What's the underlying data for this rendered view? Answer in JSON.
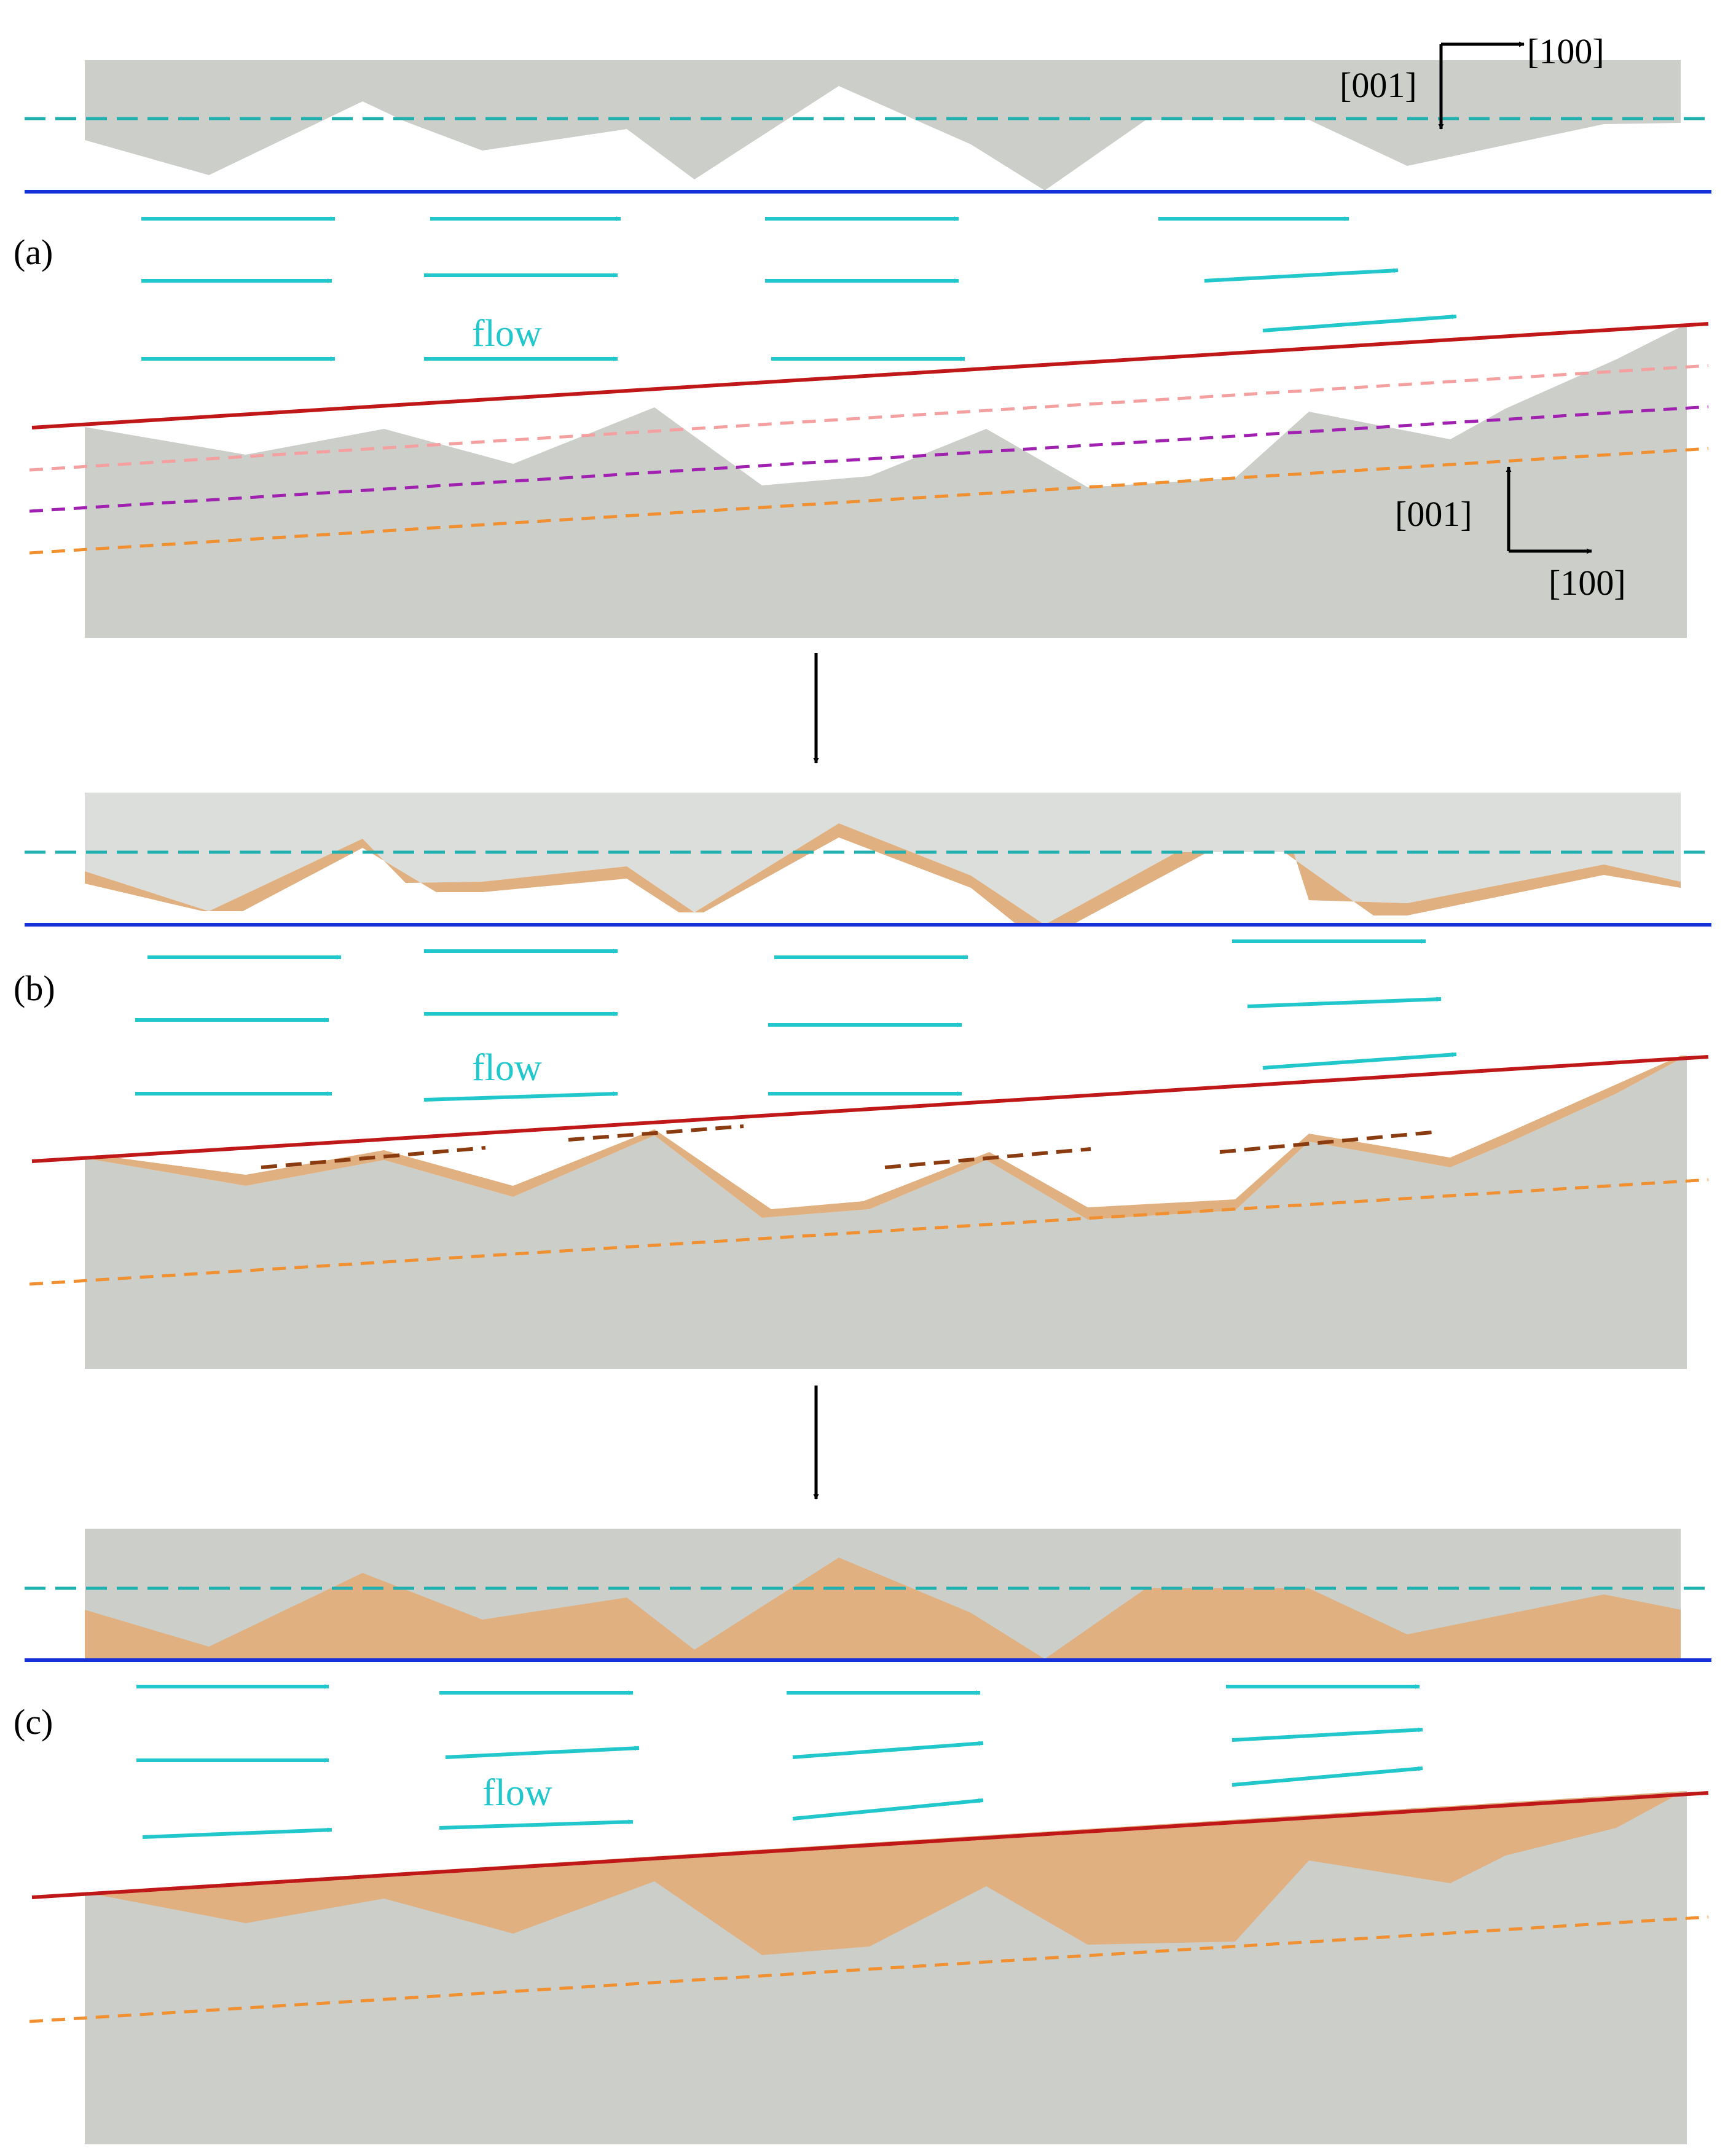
{
  "panels": [
    {
      "label": "(a)",
      "flow_label": "flow"
    },
    {
      "label": "(b)",
      "flow_label": "flow"
    },
    {
      "label": "(c)",
      "flow_label": "flow"
    }
  ],
  "axes_top": {
    "x_label": "[100]",
    "z_label": "[001]"
  },
  "axes_bottom": {
    "x_label": "[100]",
    "z_label": "[001]"
  },
  "colors": {
    "crystal": "#ccceca",
    "crystal_light": "#dcdedb",
    "deposit": "#e0b080",
    "flow": "#22c7cc",
    "interface_line": "#1530d8",
    "tilted_surface": "#c01818",
    "dashed_teal": "#20b0b0",
    "dashed_pink": "#f5a0a0",
    "dashed_purple": "#a020b0",
    "dashed_orange": "#f09030",
    "dashed_brown": "#8a3c10"
  }
}
